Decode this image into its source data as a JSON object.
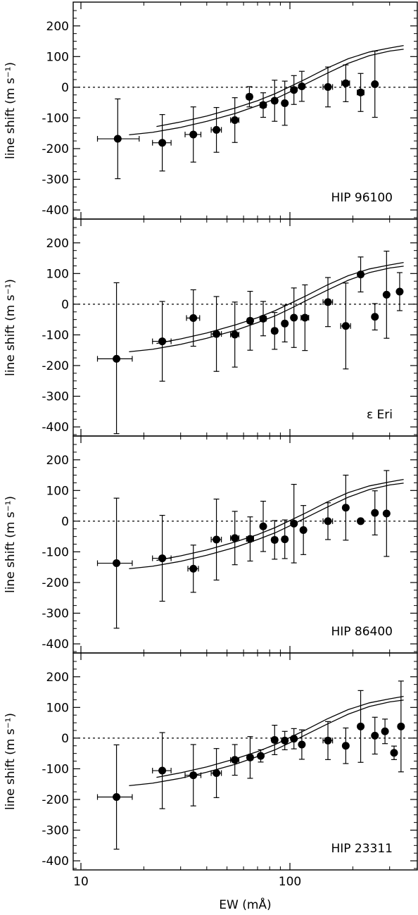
{
  "figure": {
    "xlabel": "EW (mÅ)",
    "x_tick_labels": [
      "10",
      "100"
    ],
    "y_tick_labels": [
      "200",
      "100",
      "0",
      "-100",
      "-200",
      "-300",
      "-400"
    ],
    "xscale": "log",
    "xlim": [
      9.2,
      350
    ],
    "ylim": [
      -460,
      250
    ],
    "line_color": "#000000",
    "background": "#ffffff"
  },
  "chart_data": [
    {
      "type": "scatter",
      "panel_label": "HIP 96100",
      "ylabel": "line shift (m s⁻¹)",
      "reference_line_y": 0,
      "models": [
        {
          "x": [
            17,
            22,
            30,
            40,
            55,
            70,
            85,
            100,
            120,
            150,
            190,
            240,
            300,
            350
          ],
          "y": [
            -155,
            -147,
            -131,
            -111,
            -85,
            -60,
            -38,
            -15,
            12,
            45,
            78,
            103,
            118,
            124
          ]
        },
        {
          "x": [
            23,
            30,
            40,
            55,
            70,
            85,
            100,
            120,
            150,
            190,
            240,
            300,
            350
          ],
          "y": [
            -128,
            -113,
            -94,
            -67,
            -44,
            -21,
            2,
            28,
            62,
            93,
            115,
            128,
            136
          ]
        }
      ],
      "points": [
        {
          "x": 15,
          "y": -168,
          "err_low": 130,
          "err_high": 130,
          "xerr_low": 3,
          "xerr_high": 4
        },
        {
          "x": 24.5,
          "y": -181,
          "err_low": 92,
          "err_high": 92,
          "xerr_low": 2.5,
          "xerr_high": 2.5
        },
        {
          "x": 34.5,
          "y": -154,
          "err_low": 90,
          "err_high": 90,
          "xerr_low": 3,
          "xerr_high": 3
        },
        {
          "x": 44.5,
          "y": -139,
          "err_low": 73,
          "err_high": 73,
          "xerr_low": 2.5,
          "xerr_high": 2.5
        },
        {
          "x": 54.5,
          "y": -107,
          "err_low": 73,
          "err_high": 73,
          "xerr_low": 2.5,
          "xerr_high": 2.5
        },
        {
          "x": 64,
          "y": -31,
          "err_low": 33,
          "err_high": 33,
          "xerr_low": 2,
          "xerr_high": 2
        },
        {
          "x": 74.5,
          "y": -58,
          "err_low": 40,
          "err_high": 40,
          "xerr_low": 2.5,
          "xerr_high": 2.5
        },
        {
          "x": 84.5,
          "y": -44,
          "err_low": 67,
          "err_high": 67,
          "xerr_low": 2.5,
          "xerr_high": 2.5
        },
        {
          "x": 94.5,
          "y": -52,
          "err_low": 72,
          "err_high": 72,
          "xerr_low": 2.5,
          "xerr_high": 2.5
        },
        {
          "x": 104.5,
          "y": -9,
          "err_low": 47,
          "err_high": 47,
          "xerr_low": 2.5,
          "xerr_high": 2.5
        },
        {
          "x": 114,
          "y": 3,
          "err_low": 49,
          "err_high": 49,
          "xerr_low": 2.5,
          "xerr_high": 2.5
        },
        {
          "x": 152,
          "y": 1,
          "err_low": 65,
          "err_high": 65,
          "xerr_low": 8,
          "xerr_high": 8
        },
        {
          "x": 185,
          "y": 13,
          "err_low": 60,
          "err_high": 60,
          "xerr_low": 8,
          "xerr_high": 8
        },
        {
          "x": 218,
          "y": -17,
          "err_low": 62,
          "err_high": 62,
          "xerr_low": 8,
          "xerr_high": 8
        },
        {
          "x": 255,
          "y": 10,
          "err_low": 108,
          "err_high": 108,
          "xerr_low": 0,
          "xerr_high": 0
        }
      ]
    },
    {
      "type": "scatter",
      "panel_label": "ε Eri",
      "ylabel": "line shift (m s⁻¹)",
      "reference_line_y": 0,
      "models": [
        {
          "x": [
            17,
            22,
            30,
            40,
            55,
            70,
            85,
            100,
            120,
            150,
            190,
            240,
            300,
            350
          ],
          "y": [
            -155,
            -147,
            -131,
            -111,
            -85,
            -60,
            -38,
            -15,
            12,
            45,
            78,
            103,
            118,
            124
          ]
        },
        {
          "x": [
            23,
            30,
            40,
            55,
            70,
            85,
            100,
            120,
            150,
            190,
            240,
            300,
            350
          ],
          "y": [
            -128,
            -113,
            -94,
            -67,
            -44,
            -21,
            2,
            28,
            62,
            93,
            115,
            128,
            136
          ]
        }
      ],
      "points": [
        {
          "x": 14.8,
          "y": -178,
          "err_low": 244,
          "err_high": 248,
          "xerr_low": 2.8,
          "xerr_high": 2.8
        },
        {
          "x": 24.5,
          "y": -121,
          "err_low": 130,
          "err_high": 130,
          "xerr_low": 2.5,
          "xerr_high": 2.5
        },
        {
          "x": 34.5,
          "y": -45,
          "err_low": 92,
          "err_high": 92,
          "xerr_low": 2.5,
          "xerr_high": 2.5
        },
        {
          "x": 44.5,
          "y": -97,
          "err_low": 122,
          "err_high": 122,
          "xerr_low": 2.5,
          "xerr_high": 2.5
        },
        {
          "x": 54.5,
          "y": -99,
          "err_low": 106,
          "err_high": 106,
          "xerr_low": 2.5,
          "xerr_high": 2.5
        },
        {
          "x": 64.5,
          "y": -54,
          "err_low": 96,
          "err_high": 96,
          "xerr_low": 2,
          "xerr_high": 2
        },
        {
          "x": 74.5,
          "y": -47,
          "err_low": 56,
          "err_high": 56,
          "xerr_low": 2.5,
          "xerr_high": 2.5
        },
        {
          "x": 84.5,
          "y": -87,
          "err_low": 60,
          "err_high": 60,
          "xerr_low": 2.5,
          "xerr_high": 2.5
        },
        {
          "x": 94.5,
          "y": -63,
          "err_low": 60,
          "err_high": 60,
          "xerr_low": 2.5,
          "xerr_high": 2.5
        },
        {
          "x": 104.5,
          "y": -44,
          "err_low": 97,
          "err_high": 97,
          "xerr_low": 2.5,
          "xerr_high": 2.5
        },
        {
          "x": 118,
          "y": -44,
          "err_low": 107,
          "err_high": 107,
          "xerr_low": 5,
          "xerr_high": 5
        },
        {
          "x": 152,
          "y": 7,
          "err_low": 80,
          "err_high": 80,
          "xerr_low": 8,
          "xerr_high": 8
        },
        {
          "x": 185,
          "y": -71,
          "err_low": 140,
          "err_high": 140,
          "xerr_low": 10,
          "xerr_high": 10
        },
        {
          "x": 218,
          "y": 97,
          "err_low": 57,
          "err_high": 57,
          "xerr_low": 6,
          "xerr_high": 6
        },
        {
          "x": 255,
          "y": -41,
          "err_low": 43,
          "err_high": 43,
          "xerr_low": 0,
          "xerr_high": 0
        },
        {
          "x": 290,
          "y": 31,
          "err_low": 142,
          "err_high": 142,
          "xerr_low": 0,
          "xerr_high": 0
        },
        {
          "x": 335,
          "y": 41,
          "err_low": 62,
          "err_high": 62,
          "xerr_low": 0,
          "xerr_high": 0
        }
      ]
    },
    {
      "type": "scatter",
      "panel_label": "HIP 86400",
      "ylabel": "line shift (m s⁻¹)",
      "reference_line_y": 0,
      "models": [
        {
          "x": [
            17,
            22,
            30,
            40,
            55,
            70,
            85,
            100,
            120,
            150,
            190,
            240,
            300,
            350
          ],
          "y": [
            -155,
            -147,
            -131,
            -111,
            -85,
            -60,
            -38,
            -15,
            12,
            45,
            78,
            103,
            118,
            124
          ]
        },
        {
          "x": [
            23,
            30,
            40,
            55,
            70,
            85,
            100,
            120,
            150,
            190,
            240,
            300,
            350
          ],
          "y": [
            -128,
            -113,
            -94,
            -67,
            -44,
            -21,
            2,
            28,
            62,
            93,
            115,
            128,
            136
          ]
        }
      ],
      "points": [
        {
          "x": 14.8,
          "y": -137,
          "err_low": 212,
          "err_high": 212,
          "xerr_low": 2.8,
          "xerr_high": 2.8
        },
        {
          "x": 24.5,
          "y": -121,
          "err_low": 140,
          "err_high": 140,
          "xerr_low": 2.5,
          "xerr_high": 2.5
        },
        {
          "x": 34.5,
          "y": -155,
          "err_low": 77,
          "err_high": 77,
          "xerr_low": 2,
          "xerr_high": 2
        },
        {
          "x": 44.5,
          "y": -60,
          "err_low": 132,
          "err_high": 132,
          "xerr_low": 2.5,
          "xerr_high": 2.5
        },
        {
          "x": 54.5,
          "y": -55,
          "err_low": 87,
          "err_high": 87,
          "xerr_low": 2.5,
          "xerr_high": 2.5
        },
        {
          "x": 64.5,
          "y": -58,
          "err_low": 72,
          "err_high": 72,
          "xerr_low": 2.5,
          "xerr_high": 2.5
        },
        {
          "x": 74.5,
          "y": -17,
          "err_low": 82,
          "err_high": 82,
          "xerr_low": 0,
          "xerr_high": 0
        },
        {
          "x": 84.5,
          "y": -61,
          "err_low": 63,
          "err_high": 63,
          "xerr_low": 2.5,
          "xerr_high": 2.5
        },
        {
          "x": 94.5,
          "y": -59,
          "err_low": 63,
          "err_high": 63,
          "xerr_low": 2.5,
          "xerr_high": 2.5
        },
        {
          "x": 104.5,
          "y": -8,
          "err_low": 128,
          "err_high": 128,
          "xerr_low": 0,
          "xerr_high": 0
        },
        {
          "x": 116,
          "y": -29,
          "err_low": 80,
          "err_high": 80,
          "xerr_low": 3,
          "xerr_high": 3
        },
        {
          "x": 152,
          "y": 0,
          "err_low": 60,
          "err_high": 60,
          "xerr_low": 8,
          "xerr_high": 8
        },
        {
          "x": 185,
          "y": 44,
          "err_low": 106,
          "err_high": 106,
          "xerr_low": 0,
          "xerr_high": 0
        },
        {
          "x": 218,
          "y": 0,
          "err_low": 0,
          "err_high": 0,
          "xerr_low": 0,
          "xerr_high": 0
        },
        {
          "x": 255,
          "y": 27,
          "err_low": 72,
          "err_high": 72,
          "xerr_low": 0,
          "xerr_high": 0
        },
        {
          "x": 290,
          "y": 25,
          "err_low": 140,
          "err_high": 140,
          "xerr_low": 0,
          "xerr_high": 0
        }
      ]
    },
    {
      "type": "scatter",
      "panel_label": "HIP 23311",
      "ylabel": "line shift (m s⁻¹)",
      "reference_line_y": 0,
      "models": [
        {
          "x": [
            17,
            22,
            30,
            40,
            55,
            70,
            85,
            100,
            120,
            150,
            190,
            240,
            300,
            350
          ],
          "y": [
            -155,
            -147,
            -131,
            -111,
            -85,
            -60,
            -38,
            -15,
            12,
            45,
            78,
            103,
            118,
            124
          ]
        },
        {
          "x": [
            23,
            30,
            40,
            55,
            70,
            85,
            100,
            120,
            150,
            190,
            240,
            300,
            350
          ],
          "y": [
            -128,
            -113,
            -94,
            -67,
            -44,
            -21,
            2,
            28,
            62,
            93,
            115,
            128,
            136
          ]
        }
      ],
      "points": [
        {
          "x": 14.8,
          "y": -192,
          "err_low": 170,
          "err_high": 170,
          "xerr_low": 2.8,
          "xerr_high": 2.8
        },
        {
          "x": 24.5,
          "y": -106,
          "err_low": 124,
          "err_high": 124,
          "xerr_low": 2.5,
          "xerr_high": 2.5
        },
        {
          "x": 34.5,
          "y": -121,
          "err_low": 100,
          "err_high": 100,
          "xerr_low": 3,
          "xerr_high": 3
        },
        {
          "x": 44.5,
          "y": -114,
          "err_low": 80,
          "err_high": 80,
          "xerr_low": 2.5,
          "xerr_high": 2.5
        },
        {
          "x": 54.5,
          "y": -71,
          "err_low": 50,
          "err_high": 50,
          "xerr_low": 2.5,
          "xerr_high": 2.5
        },
        {
          "x": 64.5,
          "y": -63,
          "err_low": 68,
          "err_high": 68,
          "xerr_low": 2,
          "xerr_high": 2
        },
        {
          "x": 72.5,
          "y": -58,
          "err_low": 20,
          "err_high": 20,
          "xerr_low": 1.5,
          "xerr_high": 1.5
        },
        {
          "x": 84.5,
          "y": -6,
          "err_low": 48,
          "err_high": 48,
          "xerr_low": 2.5,
          "xerr_high": 2.5
        },
        {
          "x": 94.5,
          "y": -8,
          "err_low": 30,
          "err_high": 30,
          "xerr_low": 2.5,
          "xerr_high": 2.5
        },
        {
          "x": 104.5,
          "y": -2,
          "err_low": 33,
          "err_high": 33,
          "xerr_low": 2.5,
          "xerr_high": 2.5
        },
        {
          "x": 114,
          "y": -21,
          "err_low": 48,
          "err_high": 48,
          "xerr_low": 0,
          "xerr_high": 0
        },
        {
          "x": 152,
          "y": -8,
          "err_low": 62,
          "err_high": 62,
          "xerr_low": 8,
          "xerr_high": 8
        },
        {
          "x": 185,
          "y": -25,
          "err_low": 58,
          "err_high": 58,
          "xerr_low": 0,
          "xerr_high": 0
        },
        {
          "x": 218,
          "y": 38,
          "err_low": 117,
          "err_high": 117,
          "xerr_low": 0,
          "xerr_high": 0
        },
        {
          "x": 255,
          "y": 8,
          "err_low": 60,
          "err_high": 60,
          "xerr_low": 0,
          "xerr_high": 0
        },
        {
          "x": 285,
          "y": 22,
          "err_low": 40,
          "err_high": 40,
          "xerr_low": 0,
          "xerr_high": 0
        },
        {
          "x": 315,
          "y": -48,
          "err_low": 22,
          "err_high": 22,
          "xerr_low": 0,
          "xerr_high": 0
        },
        {
          "x": 340,
          "y": 38,
          "err_low": 148,
          "err_high": 148,
          "xerr_low": 0,
          "xerr_high": 0
        }
      ]
    }
  ]
}
